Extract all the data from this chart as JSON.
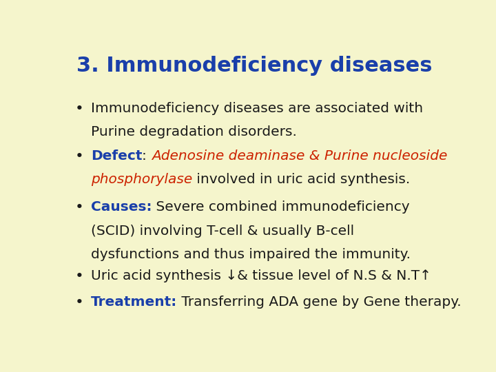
{
  "title": "3. Immunodeficiency diseases",
  "title_color": "#1a3faa",
  "title_fontsize": 22,
  "background_color": "#f5f5cc",
  "blue_color": "#1a3faa",
  "red_color": "#cc2200",
  "black_color": "#1a1a1a",
  "bullet_symbol": "•",
  "font_size": 14.5,
  "figsize": [
    7.2,
    5.4
  ],
  "dpi": 100,
  "bullet1_line1": "Immunodeficiency diseases are associated with",
  "bullet1_line2": "Purine degradation disorders.",
  "defect_label": "Defect",
  "defect_colon": ": ",
  "defect_italic1": "Adenosine deaminase & Purine nucleoside",
  "defect_italic2": "phosphorylase",
  "defect_rest": " involved in uric acid synthesis.",
  "causes_label": "Causes:",
  "causes_rest1": " Severe combined immunodeficiency",
  "causes_line2": "(SCID) involving T-cell & usually B-cell",
  "causes_line3": "dysfunctions and thus impaired the immunity.",
  "uric_text": "Uric acid synthesis ↓& tissue level of N.S & N.T↑",
  "treat_label": "Treatment:",
  "treat_rest": " Transferring ADA gene by Gene therapy."
}
